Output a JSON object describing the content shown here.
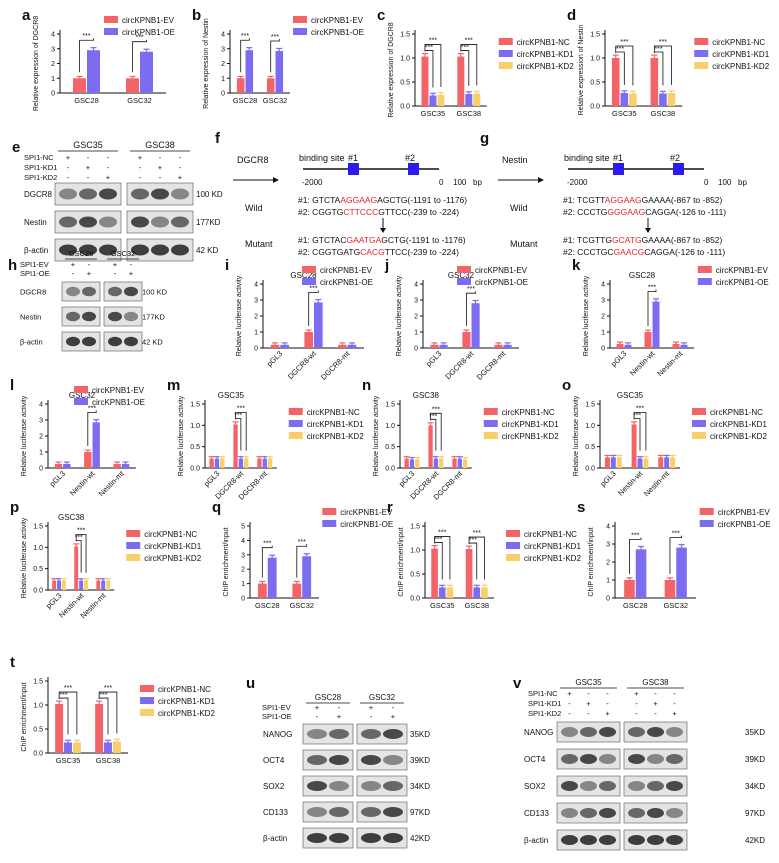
{
  "colors": {
    "red": "#f26468",
    "blue": "#7b6cf0",
    "yellow": "#f9cf6a",
    "axis": "#111111"
  },
  "panels": [
    {
      "letter": "a",
      "type": "bar",
      "ylabel": "Relative  expression of DGCR8",
      "ylim": [
        0,
        4
      ],
      "yticks": [
        0,
        1,
        2,
        3,
        4
      ],
      "categories": [
        "GSC28",
        "GSC32"
      ],
      "legend": [
        "circKPNB1-EV",
        "circKPNB1-OE"
      ],
      "series": [
        {
          "name": "circKPNB1-EV",
          "color": "red",
          "values": [
            1.0,
            1.0
          ]
        },
        {
          "name": "circKPNB1-OE",
          "color": "blue",
          "values": [
            2.9,
            2.8
          ]
        }
      ],
      "stars": [
        "***",
        "***"
      ]
    },
    {
      "letter": "b",
      "type": "bar",
      "ylabel": "Relative expression of Nestin",
      "ylim": [
        0,
        4
      ],
      "yticks": [
        0,
        1,
        2,
        3,
        4
      ],
      "categories": [
        "GSC28",
        "GSC32"
      ],
      "legend": [
        "circKPNB1-EV",
        "circKPNB1-OE"
      ],
      "series": [
        {
          "name": "circKPNB1-EV",
          "color": "red",
          "values": [
            1.0,
            1.0
          ]
        },
        {
          "name": "circKPNB1-OE",
          "color": "blue",
          "values": [
            2.9,
            2.85
          ]
        }
      ],
      "stars": [
        "***",
        "***"
      ]
    },
    {
      "letter": "c",
      "type": "bar",
      "ylabel": "Relative  expression of DGCR8",
      "ylim": [
        0,
        1.5
      ],
      "yticks": [
        0,
        0.5,
        1.0,
        1.5
      ],
      "categories": [
        "GSC35",
        "GSC38"
      ],
      "legend": [
        "circKPNB1-NC",
        "circKPNB1-KD1",
        "circKPNB1-KD2"
      ],
      "series": [
        {
          "name": "circKPNB1-NC",
          "color": "red",
          "values": [
            1.03,
            1.03
          ]
        },
        {
          "name": "circKPNB1-KD1",
          "color": "blue",
          "values": [
            0.22,
            0.25
          ]
        },
        {
          "name": "circKPNB1-KD2",
          "color": "yellow",
          "values": [
            0.23,
            0.26
          ]
        }
      ],
      "stars": [
        "***",
        "***"
      ]
    },
    {
      "letter": "d",
      "type": "bar",
      "ylabel": "Relative expression of Nestin",
      "ylim": [
        0,
        1.5
      ],
      "yticks": [
        0,
        0.5,
        1.0,
        1.5
      ],
      "categories": [
        "GSC35",
        "GSC38"
      ],
      "legend": [
        "circKPNB1-NC",
        "circKPNB1-KD1",
        "circKPNB1-KD2"
      ],
      "series": [
        {
          "name": "circKPNB1-NC",
          "color": "red",
          "values": [
            1.0,
            1.0
          ]
        },
        {
          "name": "circKPNB1-KD1",
          "color": "blue",
          "values": [
            0.27,
            0.26
          ]
        },
        {
          "name": "circKPNB1-KD2",
          "color": "yellow",
          "values": [
            0.26,
            0.27
          ]
        }
      ],
      "stars": [
        "***",
        "***"
      ]
    },
    {
      "letter": "i",
      "type": "bar",
      "title": "GSC28",
      "ylabel": "Relative luciferase activity",
      "ylim": [
        0,
        4
      ],
      "yticks": [
        0,
        1,
        2,
        3,
        4
      ],
      "categories": [
        "pGL3",
        "DGCR8-wt",
        "DGCR8-mt"
      ],
      "rotate": true,
      "legend": [
        "circKPNB1-EV",
        "circKPNB1-OE"
      ],
      "series": [
        {
          "name": "circKPNB1-EV",
          "color": "red",
          "values": [
            0.2,
            1.0,
            0.2
          ]
        },
        {
          "name": "circKPNB1-OE",
          "color": "blue",
          "values": [
            0.2,
            2.85,
            0.2
          ]
        }
      ],
      "stars": [
        "",
        "***",
        ""
      ]
    },
    {
      "letter": "j",
      "type": "bar",
      "title": "GSC32",
      "ylabel": "Relative luciferase activity",
      "ylim": [
        0,
        4
      ],
      "yticks": [
        0,
        1,
        2,
        3,
        4
      ],
      "categories": [
        "pGL3",
        "DGCR8-wt",
        "DGCR8-mt"
      ],
      "rotate": true,
      "legend": [
        "circKPNB1-EV",
        "circKPNB1-OE"
      ],
      "series": [
        {
          "name": "circKPNB1-EV",
          "color": "red",
          "values": [
            0.2,
            1.0,
            0.2
          ]
        },
        {
          "name": "circKPNB1-OE",
          "color": "blue",
          "values": [
            0.2,
            2.8,
            0.2
          ]
        }
      ],
      "stars": [
        "",
        "***",
        ""
      ]
    },
    {
      "letter": "k",
      "type": "bar",
      "title": "GSC28",
      "ylabel": "Relative luciferase activity",
      "ylim": [
        0,
        4
      ],
      "yticks": [
        0,
        1,
        2,
        3,
        4
      ],
      "categories": [
        "pGL3",
        "Nestin-wt",
        "Nestin-mt"
      ],
      "rotate": true,
      "legend": [
        "circKPNB1-EV",
        "circKPNB1-OE"
      ],
      "series": [
        {
          "name": "circKPNB1-EV",
          "color": "red",
          "values": [
            0.25,
            1.0,
            0.25
          ]
        },
        {
          "name": "circKPNB1-OE",
          "color": "blue",
          "values": [
            0.2,
            2.9,
            0.2
          ]
        }
      ],
      "stars": [
        "",
        "***",
        ""
      ]
    },
    {
      "letter": "l",
      "type": "bar",
      "title": "GSC32",
      "ylabel": "Relative luciferase activity",
      "ylim": [
        0,
        4
      ],
      "yticks": [
        0,
        1,
        2,
        3,
        4
      ],
      "categories": [
        "pGL3",
        "Nestin-wt",
        "Nestin-mt"
      ],
      "rotate": true,
      "legend": [
        "circKPNB1-EV",
        "circKPNB1-OE"
      ],
      "series": [
        {
          "name": "circKPNB1-EV",
          "color": "red",
          "values": [
            0.25,
            1.0,
            0.25
          ]
        },
        {
          "name": "circKPNB1-OE",
          "color": "blue",
          "values": [
            0.25,
            2.85,
            0.25
          ]
        }
      ],
      "stars": [
        "",
        "***",
        ""
      ]
    },
    {
      "letter": "m",
      "type": "bar",
      "title": "GSC35",
      "ylabel": "Relative luciferase activity",
      "ylim": [
        0,
        1.5
      ],
      "yticks": [
        0,
        0.5,
        1.0,
        1.5
      ],
      "categories": [
        "pGL3",
        "DGCR8-wt",
        "DGCR8-mt"
      ],
      "rotate": true,
      "legend": [
        "circKPNB1-NC",
        "circKPNB1-KD1",
        "circKPNB1-KD2"
      ],
      "series": [
        {
          "name": "circKPNB1-NC",
          "color": "red",
          "values": [
            0.22,
            1.02,
            0.22
          ]
        },
        {
          "name": "circKPNB1-KD1",
          "color": "blue",
          "values": [
            0.22,
            0.22,
            0.22
          ]
        },
        {
          "name": "circKPNB1-KD2",
          "color": "yellow",
          "values": [
            0.22,
            0.22,
            0.22
          ]
        }
      ],
      "stars": [
        "",
        "***",
        ""
      ]
    },
    {
      "letter": "n",
      "type": "bar",
      "title": "GSC38",
      "ylabel": "Relative luciferase activity",
      "ylim": [
        0,
        1.5
      ],
      "yticks": [
        0,
        0.5,
        1.0,
        1.5
      ],
      "categories": [
        "pGL3",
        "DGCR8-wt",
        "DGCR8-mt"
      ],
      "rotate": true,
      "legend": [
        "circKPNB1-NC",
        "circKPNB1-KD1",
        "circKPNB1-KD2"
      ],
      "series": [
        {
          "name": "circKPNB1-NC",
          "color": "red",
          "values": [
            0.22,
            1.0,
            0.22
          ]
        },
        {
          "name": "circKPNB1-KD1",
          "color": "blue",
          "values": [
            0.2,
            0.22,
            0.22
          ]
        },
        {
          "name": "circKPNB1-KD2",
          "color": "yellow",
          "values": [
            0.2,
            0.22,
            0.2
          ]
        }
      ],
      "stars": [
        "",
        "***",
        ""
      ]
    },
    {
      "letter": "o",
      "type": "bar",
      "title": "GSC35",
      "ylabel": "Relative luciferase activity",
      "ylim": [
        0,
        1.5
      ],
      "yticks": [
        0,
        0.5,
        1.0,
        1.5
      ],
      "categories": [
        "pGL3",
        "Nestin-wt",
        "Nestin-mt"
      ],
      "rotate": true,
      "legend": [
        "circKPNB1-NC",
        "circKPNB1-KD1",
        "circKPNB1-KD2"
      ],
      "series": [
        {
          "name": "circKPNB1-NC",
          "color": "red",
          "values": [
            0.25,
            1.02,
            0.25
          ]
        },
        {
          "name": "circKPNB1-KD1",
          "color": "blue",
          "values": [
            0.25,
            0.22,
            0.25
          ]
        },
        {
          "name": "circKPNB1-KD2",
          "color": "yellow",
          "values": [
            0.25,
            0.22,
            0.25
          ]
        }
      ],
      "stars": [
        "",
        "***",
        ""
      ]
    },
    {
      "letter": "p",
      "type": "bar",
      "title": "GSC38",
      "ylabel": "Relative luciferase activity",
      "ylim": [
        0,
        1.5
      ],
      "yticks": [
        0,
        0.5,
        1.0,
        1.5
      ],
      "categories": [
        "pGL3",
        "Nestin-wt",
        "Nestin-mt"
      ],
      "rotate": true,
      "legend": [
        "circKPNB1-NC",
        "circKPNB1-KD1",
        "circKPNB1-KD2"
      ],
      "series": [
        {
          "name": "circKPNB1-NC",
          "color": "red",
          "values": [
            0.22,
            1.02,
            0.22
          ]
        },
        {
          "name": "circKPNB1-KD1",
          "color": "blue",
          "values": [
            0.22,
            0.22,
            0.22
          ]
        },
        {
          "name": "circKPNB1-KD2",
          "color": "yellow",
          "values": [
            0.22,
            0.22,
            0.22
          ]
        }
      ],
      "stars": [
        "",
        "***",
        ""
      ]
    },
    {
      "letter": "q",
      "type": "bar",
      "ylabel": "ChIP  enrichment/input",
      "ylim": [
        0,
        5
      ],
      "yticks": [
        0,
        1,
        2,
        3,
        4,
        5
      ],
      "categories": [
        "GSC28",
        "GSC32"
      ],
      "legend": [
        "circKPNB1-EV",
        "circKPNB1-OE"
      ],
      "series": [
        {
          "name": "circKPNB1-EV",
          "color": "red",
          "values": [
            1.0,
            1.0
          ]
        },
        {
          "name": "circKPNB1-OE",
          "color": "blue",
          "values": [
            2.8,
            2.9
          ]
        }
      ],
      "stars": [
        "***",
        "***"
      ]
    },
    {
      "letter": "r",
      "type": "bar",
      "ylabel": "ChIP  enrichment/input",
      "ylim": [
        0,
        1.5
      ],
      "yticks": [
        0,
        0.5,
        1.0,
        1.5
      ],
      "categories": [
        "GSC35",
        "GSC38"
      ],
      "legend": [
        "circKPNB1-NC",
        "circKPNB1-KD1",
        "circKPNB1-KD2"
      ],
      "series": [
        {
          "name": "circKPNB1-NC",
          "color": "red",
          "values": [
            1.03,
            1.02
          ]
        },
        {
          "name": "circKPNB1-KD1",
          "color": "blue",
          "values": [
            0.22,
            0.22
          ]
        },
        {
          "name": "circKPNB1-KD2",
          "color": "yellow",
          "values": [
            0.22,
            0.22
          ]
        }
      ],
      "stars": [
        "***",
        "***"
      ]
    },
    {
      "letter": "s",
      "type": "bar",
      "ylabel": "ChIP  enrichment/input",
      "ylim": [
        0,
        4
      ],
      "yticks": [
        0,
        1,
        2,
        3,
        4
      ],
      "categories": [
        "GSC28",
        "GSC32"
      ],
      "legend": [
        "circKPNB1-EV",
        "circKPNB1-OE"
      ],
      "series": [
        {
          "name": "circKPNB1-EV",
          "color": "red",
          "values": [
            1.0,
            1.0
          ]
        },
        {
          "name": "circKPNB1-OE",
          "color": "blue",
          "values": [
            2.7,
            2.8
          ]
        }
      ],
      "stars": [
        "***",
        "***"
      ]
    },
    {
      "letter": "t",
      "type": "bar",
      "ylabel": "ChIP  enrichment/input",
      "ylim": [
        0,
        1.5
      ],
      "yticks": [
        0,
        0.5,
        1.0,
        1.5
      ],
      "categories": [
        "GSC35",
        "GSC38"
      ],
      "legend": [
        "circKPNB1-NC",
        "circKPNB1-KD1",
        "circKPNB1-KD2"
      ],
      "series": [
        {
          "name": "circKPNB1-NC",
          "color": "red",
          "values": [
            1.02,
            1.02
          ]
        },
        {
          "name": "circKPNB1-KD1",
          "color": "blue",
          "values": [
            0.22,
            0.22
          ]
        },
        {
          "name": "circKPNB1-KD2",
          "color": "yellow",
          "values": [
            0.22,
            0.24
          ]
        }
      ],
      "stars": [
        "***",
        "***"
      ]
    }
  ],
  "blots": [
    {
      "letter": "e",
      "groups": [
        "GSC35",
        "GSC38"
      ],
      "conditions": [
        "SPI1-NC",
        "SPI1-KD1",
        "SPI1-KD2"
      ],
      "signs": [
        [
          "+",
          "-",
          "-"
        ],
        [
          "-",
          "+",
          "-"
        ],
        [
          "-",
          "-",
          "+"
        ]
      ],
      "rows": [
        {
          "name": "DGCR8",
          "size": "100 KD"
        },
        {
          "name": "Nestin",
          "size": "177KD"
        },
        {
          "name": "β-actin",
          "size": "42 KD"
        }
      ]
    },
    {
      "letter": "h",
      "groups": [
        "GSC28",
        "GSC32"
      ],
      "conditions": [
        "SPI1-EV",
        "SPI1-OE"
      ],
      "signs": [
        [
          "+",
          "-"
        ],
        [
          "-",
          "+"
        ]
      ],
      "rows": [
        {
          "name": "DGCR8",
          "size": "100 KD"
        },
        {
          "name": "Nestin",
          "size": "177KD"
        },
        {
          "name": "β-actin",
          "size": "42 KD"
        }
      ]
    },
    {
      "letter": "u",
      "groups": [
        "GSC28",
        "GSC32"
      ],
      "conditions": [
        "SPI1-EV",
        "SPI1-OE"
      ],
      "signs": [
        [
          "+",
          "-"
        ],
        [
          "-",
          "+"
        ]
      ],
      "rows": [
        {
          "name": "NANOG",
          "size": "35KD"
        },
        {
          "name": "OCT4",
          "size": "39KD"
        },
        {
          "name": "SOX2",
          "size": "34KD"
        },
        {
          "name": "CD133",
          "size": "97KD"
        },
        {
          "name": "β-actin",
          "size": "42KD"
        }
      ]
    },
    {
      "letter": "v",
      "groups": [
        "GSC35",
        "GSC38"
      ],
      "conditions": [
        "SPI1-NC",
        "SPI1-KD1",
        "SPI1-KD2"
      ],
      "signs": [
        [
          "+",
          "-",
          "-"
        ],
        [
          "-",
          "+",
          "-"
        ],
        [
          "-",
          "-",
          "+"
        ]
      ],
      "rows": [
        {
          "name": "NANOG",
          "size": "35KD"
        },
        {
          "name": "OCT4",
          "size": "39KD"
        },
        {
          "name": "SOX2",
          "size": "34KD"
        },
        {
          "name": "CD133",
          "size": "97KD"
        },
        {
          "name": "β-actin",
          "size": "42KD"
        }
      ]
    }
  ],
  "schemes": [
    {
      "letter": "f",
      "gene": "DGCR8",
      "binding_label": "binding site",
      "site1": "#1",
      "site2": "#2",
      "axis_start": "-2000",
      "axis_mid": "0",
      "axis_100": "100",
      "axis_unit": "bp",
      "wild_label": "Wild",
      "mutant_label": "Mutant",
      "wild": [
        {
          "pre": "#1: GTCTA",
          "hl": "AGGAAG",
          "post": "AGCTG(-1191 to -1176)"
        },
        {
          "pre": "#2: CGGTG",
          "hl": "CTTCCC",
          "post": "GTTCC(-239 to -224)"
        }
      ],
      "mutant": [
        {
          "pre": "#1: GTCTAC",
          "hl": "GAATGA",
          "post": "GCTG(-1191 to -1176)"
        },
        {
          "pre": "#2: CGGTGATG",
          "hl": "CACG",
          "post": "TTCC(-239 to -224)"
        }
      ]
    },
    {
      "letter": "g",
      "gene": "Nestin",
      "binding_label": "binding site",
      "site1": "#1",
      "site2": "#2",
      "axis_start": "-2000",
      "axis_mid": "0",
      "axis_100": "100",
      "axis_unit": "bp",
      "wild_label": "Wild",
      "mutant_label": "Mutant",
      "wild": [
        {
          "pre": "#1: TCGTT",
          "hl": "AGGAAG",
          "post": "GAAAA(-867 to -852)"
        },
        {
          "pre": "#2: CCCTG",
          "hl": "GGGAAG",
          "post": "CAGGA(-126 to -111)"
        }
      ],
      "mutant": [
        {
          "pre": "#1: TCGTTG",
          "hl": "GCATG",
          "post": "GAAAA(-867 to -852)"
        },
        {
          "pre": "#2: CCCTGC",
          "hl": "GAACG",
          "post": "CAGGA(-126 to -111)"
        }
      ]
    }
  ]
}
